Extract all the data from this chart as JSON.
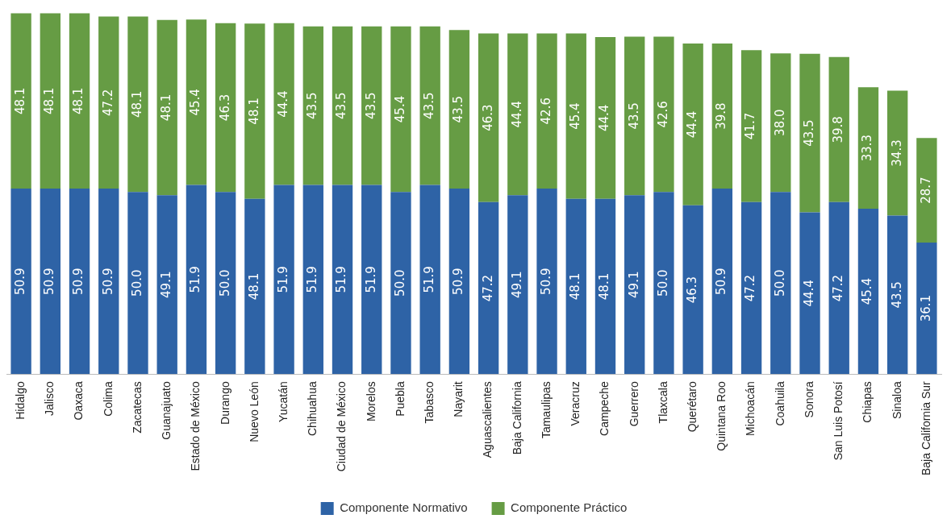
{
  "chart_data": {
    "type": "bar",
    "stacked": true,
    "legend": "bottom",
    "tick_labels": "x",
    "grid": false,
    "categories": [
      "Hidalgo",
      "Jalisco",
      "Oaxaca",
      "Colima",
      "Zacatecas",
      "Guanajuato",
      "Estado de México",
      "Durango",
      "Nuevo León",
      "Yucatán",
      "Chihuahua",
      "Ciudad de México",
      "Morelos",
      "Puebla",
      "Tabasco",
      "Nayarit",
      "Aguascalientes",
      "Baja California",
      "Tamaulipas",
      "Veracruz",
      "Campeche",
      "Guerrero",
      "Tlaxcala",
      "Querétaro",
      "Quintana Roo",
      "Michoacán",
      "Coahuila",
      "Sonora",
      "San Luis Potosí",
      "Chiapas",
      "Sinaloa",
      "Baja California Sur"
    ],
    "series": [
      {
        "name": "Componente Normativo",
        "color": "#2e63a6",
        "values": [
          50.9,
          50.9,
          50.9,
          50.9,
          50.0,
          49.1,
          51.9,
          50.0,
          48.1,
          51.9,
          51.9,
          51.9,
          51.9,
          50.0,
          51.9,
          50.9,
          47.2,
          49.1,
          50.9,
          48.1,
          48.1,
          49.1,
          50.0,
          46.3,
          50.9,
          47.2,
          50.0,
          44.4,
          47.2,
          45.4,
          43.5,
          36.1
        ],
        "value_labels": [
          "50.9",
          "50.9",
          "50.9",
          "50.9",
          "50.0",
          "49.1",
          "51.9",
          "50.0",
          "48.1",
          "51.9",
          "51.9",
          "51.9",
          "51.9",
          "50.0",
          "51.9",
          "50.9",
          "47.2",
          "49.1",
          "50.9",
          "48.1",
          "48.1",
          "49.1",
          "50.0",
          "46.3",
          "50.9",
          "47.2",
          "50.0",
          "44.4",
          "47.2",
          "45.4",
          "43.5",
          "36.1"
        ]
      },
      {
        "name": "Componente Práctico",
        "color": "#669c44",
        "values": [
          48.1,
          48.1,
          48.1,
          47.2,
          48.1,
          48.1,
          45.4,
          46.3,
          48.1,
          44.4,
          43.5,
          43.5,
          43.5,
          45.4,
          43.5,
          43.5,
          46.3,
          44.4,
          42.6,
          45.4,
          44.4,
          43.5,
          42.6,
          44.4,
          39.8,
          41.7,
          38.0,
          43.5,
          39.8,
          33.3,
          34.3,
          28.7
        ],
        "value_labels": [
          "48.1",
          "48.1",
          "48.1",
          "47.2",
          "48.1",
          "48.1",
          "45.4",
          "46.3",
          "48.1",
          "44.4",
          "43.5",
          "43.5",
          "43.5",
          "45.4",
          "43.5",
          "43.5",
          "46.3",
          "44.4",
          "42.6",
          "45.4",
          "44.4",
          "43.5",
          "42.6",
          "44.4",
          "39.8",
          "41.7",
          "38.0",
          "43.5",
          "39.8",
          "33.3",
          "34.3",
          "28.7"
        ]
      }
    ]
  }
}
